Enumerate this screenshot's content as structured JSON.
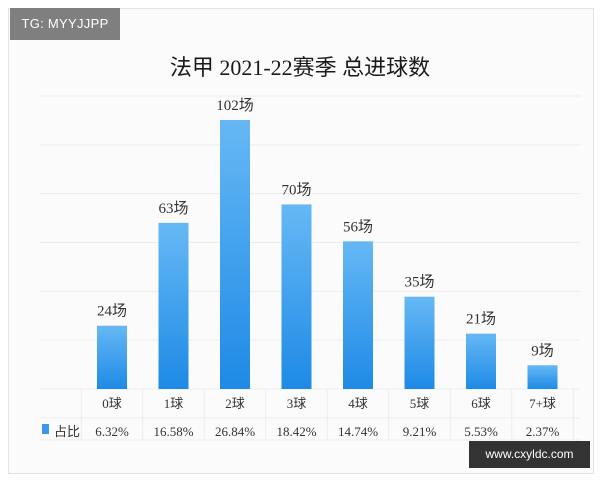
{
  "watermark": "TG: MYYJJPP",
  "website": "www.cxyldc.com",
  "chart_data": {
    "type": "bar",
    "title": "法甲 2021-22赛季 总进球数",
    "categories": [
      "0球",
      "1球",
      "2球",
      "3球",
      "4球",
      "5球",
      "6球",
      "7+球"
    ],
    "values": [
      24,
      63,
      102,
      70,
      56,
      35,
      21,
      9
    ],
    "value_labels": [
      "24场",
      "63场",
      "102场",
      "70场",
      "56场",
      "35场",
      "21场",
      "9场"
    ],
    "share_label": "占比",
    "shares": [
      "6.32%",
      "16.58%",
      "26.84%",
      "18.42%",
      "14.74%",
      "9.21%",
      "5.53%",
      "2.37%"
    ],
    "ylim": [
      0,
      102
    ],
    "grid": true,
    "colors": {
      "bar_top": "#66b8f4",
      "bar_bottom": "#1e8ae6",
      "legend": "#3a97ea",
      "grid": "#ececec",
      "text": "#333333"
    }
  }
}
